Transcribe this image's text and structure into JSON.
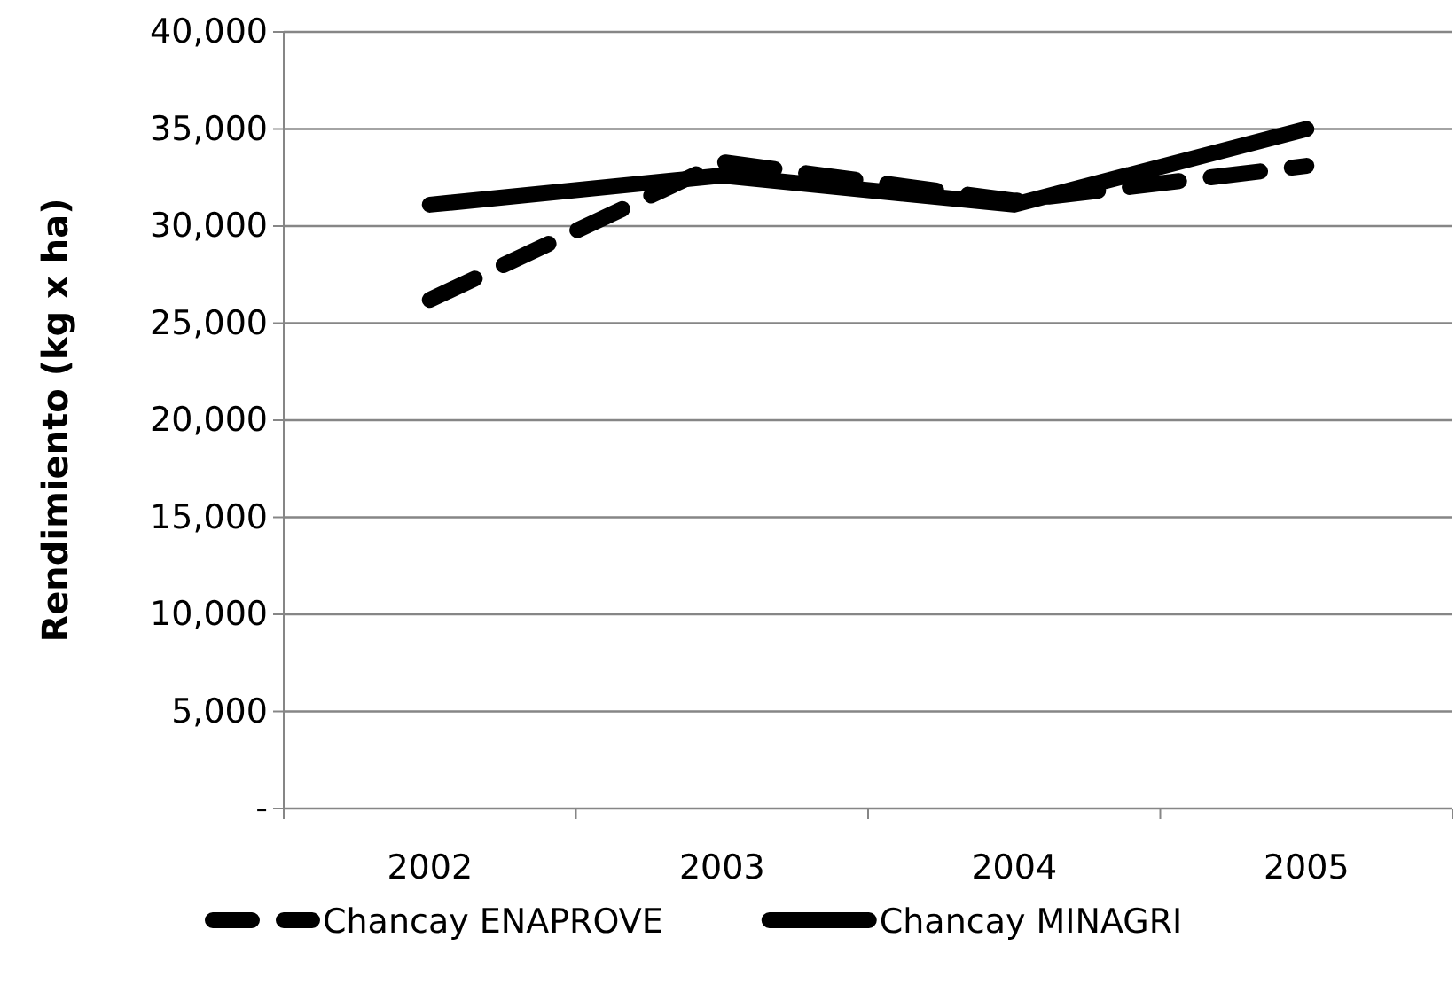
{
  "chart_data": {
    "type": "line",
    "ylabel": "Rendimiento (kg x ha)",
    "categories": [
      "2002",
      "2003",
      "2004",
      "2005"
    ],
    "series": [
      {
        "name": "Chancay ENAPROVE",
        "color": "#000000",
        "line_style": "dashed",
        "values": [
          26200,
          33300,
          31300,
          33100
        ]
      },
      {
        "name": "Chancay MINAGRI",
        "color": "#000000",
        "line_style": "solid",
        "values": [
          31100,
          32600,
          31100,
          35000
        ]
      }
    ],
    "ylim": [
      0,
      40000
    ],
    "yticks": [
      {
        "value": 0,
        "label": "-"
      },
      {
        "value": 5000,
        "label": "5,000"
      },
      {
        "value": 10000,
        "label": "10,000"
      },
      {
        "value": 15000,
        "label": "15,000"
      },
      {
        "value": 20000,
        "label": "20,000"
      },
      {
        "value": 25000,
        "label": "25,000"
      },
      {
        "value": 30000,
        "label": "30,000"
      },
      {
        "value": 35000,
        "label": "35,000"
      },
      {
        "value": 40000,
        "label": "40,000"
      }
    ],
    "grid": "y",
    "legend": "bottom",
    "marker": "none"
  }
}
